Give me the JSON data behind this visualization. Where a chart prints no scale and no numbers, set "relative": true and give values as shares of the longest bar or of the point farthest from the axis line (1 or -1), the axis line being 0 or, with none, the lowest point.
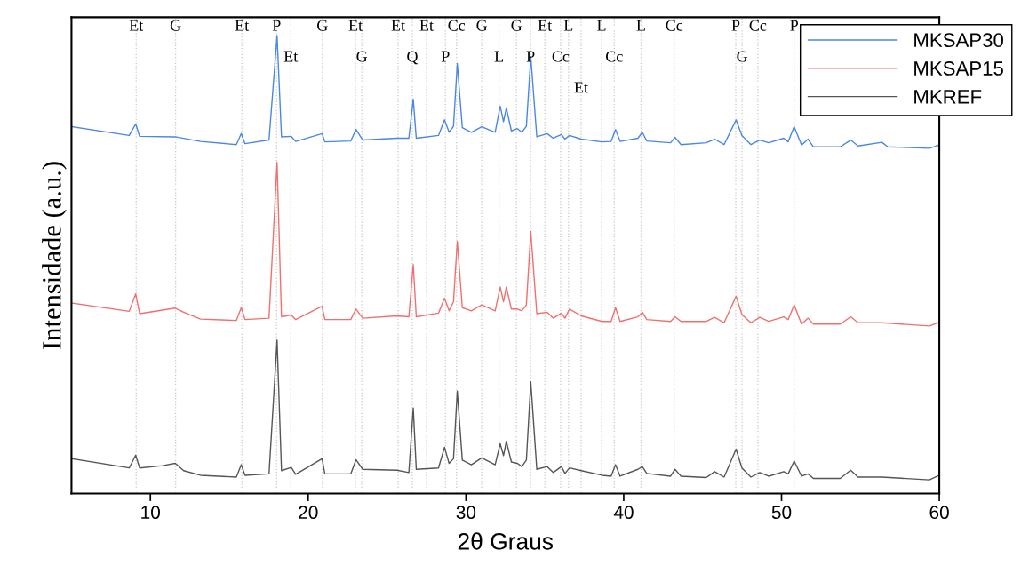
{
  "chart_data": {
    "type": "line",
    "xlabel": "2θ Graus",
    "ylabel": "Intensidade (a.u.)",
    "relative": true,
    "xlim": [
      5,
      60
    ],
    "xticks": [
      10,
      20,
      30,
      40,
      50,
      60
    ],
    "grid": false,
    "legend": "top right",
    "marker": "none",
    "line_style": "solid",
    "series": [
      {
        "name": "MKSAP30",
        "color": "#4a86e8",
        "x": [
          5.07,
          8.66,
          9.07,
          9.32,
          11.58,
          13.18,
          15.45,
          15.76,
          16.0,
          17.52,
          18.03,
          18.31,
          18.93,
          19.21,
          20.88,
          21.06,
          22.7,
          23.03,
          23.46,
          25.63,
          26.38,
          26.66,
          26.85,
          28.26,
          28.64,
          28.93,
          29.21,
          29.45,
          29.77,
          30.34,
          31.0,
          31.85,
          32.17,
          32.38,
          32.56,
          32.88,
          33.26,
          33.54,
          33.83,
          34.11,
          34.49,
          35.15,
          35.53,
          36.05,
          36.28,
          36.56,
          37.31,
          38.63,
          39.2,
          39.48,
          39.77,
          40.9,
          41.18,
          41.46,
          42.97,
          43.25,
          43.63,
          45.23,
          45.76,
          46.36,
          47.12,
          47.49,
          48.06,
          48.62,
          49.19,
          50.14,
          50.42,
          50.8,
          51.27,
          51.68,
          52.02,
          53.72,
          54.38,
          54.85,
          56.36,
          56.74,
          59.37,
          60.0
        ],
        "values": [
          0.801,
          0.782,
          0.807,
          0.78,
          0.779,
          0.769,
          0.762,
          0.786,
          0.764,
          0.772,
          1,
          0.779,
          0.78,
          0.769,
          0.786,
          0.768,
          0.77,
          0.795,
          0.772,
          0.776,
          0.776,
          0.861,
          0.776,
          0.782,
          0.816,
          0.789,
          0.802,
          0.939,
          0.799,
          0.789,
          0.801,
          0.789,
          0.846,
          0.812,
          0.842,
          0.792,
          0.797,
          0.789,
          0.802,
          0.954,
          0.779,
          0.786,
          0.776,
          0.784,
          0.774,
          0.782,
          0.774,
          0.768,
          0.769,
          0.795,
          0.769,
          0.776,
          0.789,
          0.77,
          0.766,
          0.778,
          0.762,
          0.766,
          0.774,
          0.762,
          0.816,
          0.782,
          0.762,
          0.772,
          0.766,
          0.776,
          0.768,
          0.801,
          0.761,
          0.774,
          0.757,
          0.757,
          0.772,
          0.759,
          0.767,
          0.757,
          0.754,
          0.761
        ]
      },
      {
        "name": "MKSAP15",
        "color": "#f07070",
        "x": [
          5.07,
          8.66,
          9.07,
          9.32,
          11.58,
          12.11,
          13.18,
          15.45,
          15.76,
          16.0,
          17.52,
          18.03,
          18.31,
          18.93,
          19.21,
          20.88,
          21.06,
          22.7,
          23.03,
          23.46,
          25.63,
          26.38,
          26.66,
          26.85,
          28.26,
          28.64,
          28.93,
          29.21,
          29.45,
          29.77,
          30.34,
          31.0,
          31.85,
          32.17,
          32.38,
          32.56,
          32.88,
          33.26,
          33.54,
          33.83,
          34.11,
          34.49,
          35.15,
          35.53,
          36.05,
          36.28,
          36.56,
          37.31,
          38.63,
          39.2,
          39.48,
          39.77,
          40.9,
          41.18,
          41.46,
          42.97,
          43.25,
          43.63,
          45.23,
          45.76,
          46.36,
          47.12,
          47.49,
          48.06,
          48.62,
          49.19,
          50.14,
          50.42,
          50.8,
          51.27,
          51.68,
          52.02,
          53.72,
          54.38,
          54.85,
          56.36,
          59.37,
          60.0
        ],
        "values": [
          0.416,
          0.398,
          0.436,
          0.393,
          0.405,
          0.396,
          0.381,
          0.378,
          0.406,
          0.38,
          0.383,
          0.723,
          0.386,
          0.39,
          0.38,
          0.409,
          0.38,
          0.38,
          0.403,
          0.383,
          0.388,
          0.386,
          0.5,
          0.386,
          0.394,
          0.427,
          0.399,
          0.419,
          0.551,
          0.406,
          0.399,
          0.412,
          0.399,
          0.451,
          0.419,
          0.451,
          0.403,
          0.403,
          0.399,
          0.412,
          0.572,
          0.393,
          0.396,
          0.383,
          0.394,
          0.383,
          0.403,
          0.388,
          0.376,
          0.376,
          0.406,
          0.376,
          0.386,
          0.396,
          0.38,
          0.376,
          0.386,
          0.376,
          0.376,
          0.385,
          0.373,
          0.431,
          0.391,
          0.373,
          0.385,
          0.376,
          0.386,
          0.38,
          0.412,
          0.37,
          0.383,
          0.37,
          0.37,
          0.386,
          0.373,
          0.373,
          0.366,
          0.374
        ]
      },
      {
        "name": "MKREF",
        "color": "#555555",
        "x": [
          5.07,
          8.66,
          9.07,
          9.32,
          10.77,
          11.58,
          12.11,
          13.18,
          15.45,
          15.76,
          16.0,
          17.52,
          18.03,
          18.31,
          18.93,
          19.21,
          20.88,
          21.06,
          22.7,
          23.03,
          23.46,
          25.63,
          26.38,
          26.66,
          26.85,
          28.26,
          28.64,
          28.93,
          29.21,
          29.45,
          29.77,
          30.34,
          31.0,
          31.85,
          32.17,
          32.38,
          32.56,
          32.88,
          33.26,
          33.54,
          33.83,
          34.11,
          34.49,
          35.15,
          35.53,
          36.05,
          36.28,
          36.56,
          37.31,
          38.63,
          39.2,
          39.48,
          39.77,
          40.9,
          41.18,
          41.46,
          42.97,
          43.25,
          43.63,
          45.23,
          45.76,
          46.36,
          47.12,
          47.49,
          48.06,
          48.62,
          49.19,
          50.14,
          50.42,
          50.8,
          51.27,
          51.68,
          52.02,
          53.72,
          54.38,
          54.85,
          56.36,
          59.37,
          60.0
        ],
        "values": [
          0.076,
          0.056,
          0.084,
          0.056,
          0.061,
          0.066,
          0.05,
          0.04,
          0.036,
          0.063,
          0.04,
          0.043,
          0.335,
          0.05,
          0.057,
          0.042,
          0.076,
          0.043,
          0.043,
          0.074,
          0.053,
          0.051,
          0.046,
          0.187,
          0.053,
          0.056,
          0.101,
          0.066,
          0.076,
          0.224,
          0.073,
          0.063,
          0.078,
          0.063,
          0.109,
          0.083,
          0.114,
          0.069,
          0.066,
          0.059,
          0.073,
          0.244,
          0.053,
          0.059,
          0.046,
          0.059,
          0.044,
          0.056,
          0.05,
          0.04,
          0.038,
          0.063,
          0.038,
          0.053,
          0.059,
          0.044,
          0.038,
          0.053,
          0.038,
          0.035,
          0.048,
          0.036,
          0.097,
          0.056,
          0.036,
          0.046,
          0.038,
          0.048,
          0.043,
          0.071,
          0.038,
          0.043,
          0.033,
          0.033,
          0.051,
          0.036,
          0.036,
          0.03,
          0.04
        ]
      }
    ],
    "ref_lines": [
      {
        "axis": "x",
        "value": 9.1,
        "label": "Et",
        "color": "#c8c8c8",
        "line_style": "dotted"
      },
      {
        "axis": "x",
        "value": 11.6,
        "label": "G",
        "color": "#c8c8c8",
        "line_style": "dotted"
      },
      {
        "axis": "x",
        "value": 15.8,
        "label": "Et",
        "color": "#c8c8c8",
        "line_style": "dotted"
      },
      {
        "axis": "x",
        "value": 18.0,
        "label": "P",
        "color": "#c8c8c8",
        "line_style": "dotted"
      },
      {
        "axis": "x",
        "value": 18.9,
        "label": "Et",
        "color": "#c8c8c8",
        "line_style": "dotted"
      },
      {
        "axis": "x",
        "value": 20.9,
        "label": "G",
        "color": "#c8c8c8",
        "line_style": "dotted"
      },
      {
        "axis": "x",
        "value": 23.0,
        "label": "Et",
        "color": "#c8c8c8",
        "line_style": "dotted"
      },
      {
        "axis": "x",
        "value": 23.4,
        "label": "G",
        "color": "#c8c8c8",
        "line_style": "dotted"
      },
      {
        "axis": "x",
        "value": 25.7,
        "label": "Et",
        "color": "#c8c8c8",
        "line_style": "dotted"
      },
      {
        "axis": "x",
        "value": 26.6,
        "label": "Q",
        "color": "#c8c8c8",
        "line_style": "dotted"
      },
      {
        "axis": "x",
        "value": 27.5,
        "label": "Et",
        "color": "#c8c8c8",
        "line_style": "dotted"
      },
      {
        "axis": "x",
        "value": 28.7,
        "label": "P",
        "color": "#c8c8c8",
        "line_style": "dotted"
      },
      {
        "axis": "x",
        "value": 29.4,
        "label": "Cc",
        "color": "#c8c8c8",
        "line_style": "dotted"
      },
      {
        "axis": "x",
        "value": 31.0,
        "label": "G",
        "color": "#c8c8c8",
        "line_style": "dotted"
      },
      {
        "axis": "x",
        "value": 32.1,
        "label": "L",
        "color": "#c8c8c8",
        "line_style": "dotted"
      },
      {
        "axis": "x",
        "value": 33.2,
        "label": "G",
        "color": "#c8c8c8",
        "line_style": "dotted"
      },
      {
        "axis": "x",
        "value": 34.1,
        "label": "P",
        "color": "#c8c8c8",
        "line_style": "dotted"
      },
      {
        "axis": "x",
        "value": 35.0,
        "label": "Et",
        "color": "#c8c8c8",
        "line_style": "dotted"
      },
      {
        "axis": "x",
        "value": 36.0,
        "label": "Cc",
        "color": "#c8c8c8",
        "line_style": "dotted"
      },
      {
        "axis": "x",
        "value": 36.5,
        "label": "L",
        "color": "#c8c8c8",
        "line_style": "dotted"
      },
      {
        "axis": "x",
        "value": 37.3,
        "label": "Et",
        "color": "#c8c8c8",
        "line_style": "dotted"
      },
      {
        "axis": "x",
        "value": 38.6,
        "label": "L",
        "color": "#c8c8c8",
        "line_style": "dotted"
      },
      {
        "axis": "x",
        "value": 39.4,
        "label": "Cc",
        "color": "#c8c8c8",
        "line_style": "dotted"
      },
      {
        "axis": "x",
        "value": 41.1,
        "label": "L",
        "color": "#c8c8c8",
        "line_style": "dotted"
      },
      {
        "axis": "x",
        "value": 43.2,
        "label": "Cc",
        "color": "#c8c8c8",
        "line_style": "dotted"
      },
      {
        "axis": "x",
        "value": 47.1,
        "label": "P",
        "color": "#c8c8c8",
        "line_style": "dotted"
      },
      {
        "axis": "x",
        "value": 47.5,
        "label": "G",
        "color": "#c8c8c8",
        "line_style": "dotted"
      },
      {
        "axis": "x",
        "value": 48.5,
        "label": "Cc",
        "color": "#c8c8c8",
        "line_style": "dotted"
      },
      {
        "axis": "x",
        "value": 50.8,
        "label": "P",
        "color": "#c8c8c8",
        "line_style": "dotted"
      }
    ]
  }
}
